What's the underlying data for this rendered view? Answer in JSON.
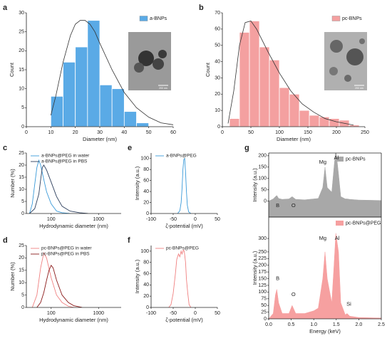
{
  "chart_data": [
    {
      "type": "histogram",
      "panel": "a",
      "xlabel": "Diameter (nm)",
      "ylabel": "Count",
      "bins": [
        10,
        15,
        20,
        25,
        30,
        35,
        40,
        45,
        50
      ],
      "series": [
        {
          "name": "a-BNPs",
          "color": "#5aaae6",
          "values": [
            8,
            17,
            21,
            28,
            11,
            10,
            4,
            1
          ]
        }
      ],
      "fit": {
        "color": "#333333",
        "x": [
          10,
          12,
          15,
          18,
          20,
          22,
          24,
          26,
          28,
          30,
          35,
          40,
          45,
          50,
          55,
          60
        ],
        "values": [
          3,
          8,
          17,
          24,
          27,
          28,
          28,
          27,
          25,
          22,
          15,
          9,
          5,
          2.5,
          1,
          0.5
        ]
      },
      "xlim": [
        0,
        60
      ],
      "xticks": [
        0,
        10,
        20,
        30,
        40,
        50,
        60
      ],
      "ylim": [
        0,
        30
      ],
      "yticks": [
        0,
        5,
        10,
        15,
        20,
        25,
        30
      ],
      "inset_scale": "200 nm"
    },
    {
      "type": "histogram",
      "panel": "b",
      "xlabel": "Diameter (nm)",
      "ylabel": "Count",
      "bins": [
        12.5,
        30,
        47.5,
        65,
        82.5,
        100,
        117.5,
        135,
        152.5,
        170,
        187.5,
        205,
        222.5,
        240
      ],
      "series": [
        {
          "name": "pc-BNPs",
          "color": "#f4a0a0",
          "values": [
            5,
            58,
            65,
            49,
            41,
            24,
            20,
            10,
            7,
            6,
            5,
            4,
            1
          ]
        }
      ],
      "fit": {
        "color": "#333333",
        "x": [
          10,
          20,
          30,
          40,
          50,
          60,
          80,
          100,
          120,
          140,
          160,
          180,
          200,
          230
        ],
        "values": [
          2,
          22,
          50,
          64,
          65,
          60,
          46,
          33,
          22,
          14,
          9,
          5,
          3,
          1
        ]
      },
      "xlim": [
        0,
        250
      ],
      "xticks": [
        0,
        50,
        100,
        150,
        200,
        250
      ],
      "ylim": [
        0,
        70
      ],
      "yticks": [
        0,
        10,
        20,
        30,
        40,
        50,
        60,
        70
      ],
      "inset_scale": "200 nm"
    },
    {
      "type": "line",
      "panel": "c",
      "xlabel": "Hydrodynamic diameter (nm)",
      "ylabel": "Number (%)",
      "xlog": true,
      "series": [
        {
          "name": "a-BNPs@PEG in water",
          "color": "#3a9ad9",
          "x": [
            35,
            40,
            45,
            50,
            55,
            60,
            70,
            80,
            100,
            130,
            170,
            250
          ],
          "values": [
            0,
            4,
            12,
            19,
            22,
            20,
            14,
            9,
            4,
            1,
            0.3,
            0
          ]
        },
        {
          "name": "a-BNPs@PEG in PBS",
          "color": "#2c3e5c",
          "x": [
            35,
            45,
            55,
            60,
            65,
            70,
            80,
            100,
            130,
            170,
            250,
            400,
            600
          ],
          "values": [
            0,
            2,
            8,
            14,
            19,
            20,
            18,
            13,
            7,
            3,
            1,
            0.3,
            0
          ]
        }
      ],
      "xlim": [
        30,
        3000
      ],
      "xticks": [
        100,
        1000
      ],
      "ylim": [
        0,
        25
      ],
      "yticks": [
        0,
        5,
        10,
        15,
        20,
        25
      ]
    },
    {
      "type": "line",
      "panel": "d",
      "xlabel": "Hydrodynamic diameter (nm)",
      "ylabel": "Number (%)",
      "xlog": true,
      "series": [
        {
          "name": "pc-BNPs@PEG in water",
          "color": "#f08080",
          "x": [
            40,
            50,
            60,
            70,
            80,
            100,
            130,
            170,
            230,
            300
          ],
          "values": [
            0,
            5,
            16,
            22,
            20,
            12,
            5,
            2,
            0.5,
            0
          ]
        },
        {
          "name": "pc-BNPs@PEG in PBS",
          "color": "#8b1a1a",
          "x": [
            50,
            60,
            70,
            80,
            90,
            100,
            110,
            130,
            170,
            230,
            300,
            450
          ],
          "values": [
            0,
            2,
            6,
            11,
            15,
            17,
            16,
            11,
            5,
            2,
            0.7,
            0
          ]
        }
      ],
      "xlim": [
        30,
        3000
      ],
      "xticks": [
        100,
        1000
      ],
      "ylim": [
        0,
        25
      ],
      "yticks": [
        0,
        5,
        10,
        15,
        20,
        25
      ]
    },
    {
      "type": "line",
      "panel": "e",
      "xlabel": "ζ-potential (mV)",
      "ylabel": "Intensity (a.u.)",
      "series": [
        {
          "name": "a-BNPs@PEG",
          "color": "#3a9ad9",
          "x": [
            -40,
            -35,
            -32,
            -30,
            -28,
            -26,
            -24,
            -22,
            -20,
            -18,
            -15,
            -10
          ],
          "values": [
            0,
            5,
            20,
            45,
            80,
            98,
            100,
            75,
            40,
            15,
            3,
            0
          ]
        }
      ],
      "xlim": [
        -100,
        50
      ],
      "xticks": [
        -100,
        -50,
        0,
        50
      ],
      "ylim": [
        0,
        110
      ],
      "yticks": [
        0,
        20,
        40,
        60,
        80,
        100
      ]
    },
    {
      "type": "line",
      "panel": "f",
      "xlabel": "ζ-potential (mV)",
      "ylabel": "Intensity (a.u.)",
      "series": [
        {
          "name": "pc-BNPs@PEG",
          "color": "#f08080",
          "x": [
            -60,
            -55,
            -50,
            -45,
            -42,
            -38,
            -35,
            -32,
            -30,
            -27,
            -25,
            -22,
            -20,
            -17,
            -14,
            -10
          ],
          "values": [
            0,
            5,
            25,
            60,
            85,
            95,
            90,
            100,
            95,
            102,
            100,
            80,
            50,
            25,
            5,
            0
          ]
        }
      ],
      "xlim": [
        -100,
        50
      ],
      "xticks": [
        -100,
        -50,
        0,
        50
      ],
      "ylim": [
        0,
        110
      ],
      "yticks": [
        0,
        20,
        40,
        60,
        80,
        100
      ]
    },
    {
      "type": "area",
      "panel": "g",
      "ylabel": "Intensity (a.u.)",
      "box": true,
      "series": [
        {
          "name": "pc-BNPs",
          "color": "#a8a8a8",
          "x": [
            0,
            0.1,
            0.15,
            0.18,
            0.22,
            0.3,
            0.45,
            0.52,
            0.6,
            0.8,
            1.0,
            1.1,
            1.2,
            1.25,
            1.3,
            1.4,
            1.45,
            1.49,
            1.55,
            1.6,
            1.7,
            1.74,
            1.8,
            2.0,
            2.5
          ],
          "values": [
            0,
            10,
            20,
            25,
            12,
            8,
            10,
            20,
            8,
            6,
            10,
            12,
            60,
            150,
            60,
            40,
            150,
            230,
            120,
            20,
            10,
            10,
            8,
            5,
            3
          ]
        }
      ],
      "annotations": [
        "B",
        "O",
        "Mg",
        "Al"
      ],
      "xlim": [
        0,
        2.5
      ],
      "ylim": [
        -70,
        212
      ],
      "yticks": [
        0,
        50,
        100,
        150,
        200
      ]
    },
    {
      "type": "area",
      "ylabel": "Intensity (a.u.)",
      "xlabel": "Energy (keV)",
      "box": true,
      "series": [
        {
          "name": "pc-BNPs@PEG",
          "color": "#f6a0a0",
          "x": [
            0,
            0.1,
            0.15,
            0.18,
            0.22,
            0.3,
            0.45,
            0.52,
            0.6,
            0.8,
            1.0,
            1.1,
            1.2,
            1.25,
            1.3,
            1.4,
            1.45,
            1.49,
            1.55,
            1.6,
            1.7,
            1.74,
            1.8,
            2.0,
            2.5
          ],
          "values": [
            0,
            20,
            90,
            110,
            60,
            20,
            20,
            50,
            20,
            20,
            30,
            40,
            150,
            250,
            150,
            60,
            200,
            320,
            250,
            60,
            15,
            20,
            10,
            5,
            3
          ]
        }
      ],
      "annotations": [
        "B",
        "O",
        "Mg",
        "Al",
        "Si"
      ],
      "xlim": [
        0,
        2.5
      ],
      "xticks": [
        {
          "value": 0,
          "label": "0.0"
        },
        0.5,
        {
          "value": 1,
          "label": "1.0"
        },
        1.5,
        {
          "value": 2,
          "label": "2.0"
        },
        2.5
      ],
      "ylim": [
        0,
        380
      ],
      "yticks": [
        0,
        25,
        50,
        75,
        100,
        125,
        150,
        175,
        200,
        225,
        250,
        300
      ]
    }
  ]
}
